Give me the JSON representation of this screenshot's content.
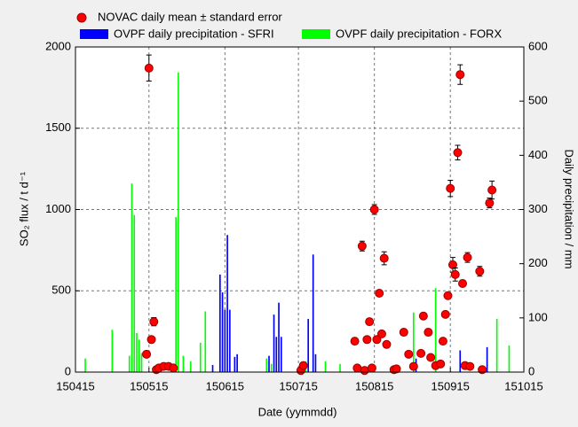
{
  "chart_data": {
    "type": "scatter",
    "xlabel": "Date (yymmdd)",
    "ylabel": "SO₂ flux / t d⁻¹",
    "y2label": "Daily precipitation / mm",
    "xlim": [
      "150415",
      "151015"
    ],
    "xticks": [
      "150415",
      "150515",
      "150615",
      "150715",
      "150815",
      "150915",
      "151015"
    ],
    "ylim": [
      0,
      2000
    ],
    "yticks": [
      0,
      500,
      1000,
      1500,
      2000
    ],
    "y2lim": [
      0,
      600
    ],
    "y2ticks": [
      0,
      100,
      200,
      300,
      400,
      500,
      600
    ],
    "grid": true,
    "legend": "top",
    "series": [
      {
        "name": "NOVAC daily mean ± standard error",
        "type": "scatter",
        "color": "#ff0000",
        "x": [
          "150514",
          "150515",
          "150516",
          "150517",
          "150518",
          "150519",
          "150521",
          "150523",
          "150525",
          "150716",
          "150717",
          "150807",
          "150808",
          "150810",
          "150811",
          "150812",
          "150813",
          "150814",
          "150815",
          "150816",
          "150817",
          "150818",
          "150819",
          "150820",
          "150823",
          "150824",
          "150827",
          "150829",
          "150831",
          "150903",
          "150904",
          "150906",
          "150907",
          "150909",
          "150911",
          "150912",
          "150913",
          "150914",
          "150915",
          "150916",
          "150917",
          "150918",
          "150919",
          "150920",
          "150921",
          "150922",
          "150923",
          "150927",
          "150928",
          "151001",
          "151002"
        ],
        "values": [
          110,
          1870,
          200,
          310,
          15,
          25,
          35,
          35,
          25,
          10,
          40,
          190,
          25,
          775,
          10,
          200,
          310,
          25,
          1000,
          200,
          485,
          235,
          700,
          170,
          15,
          20,
          245,
          110,
          35,
          115,
          345,
          245,
          90,
          40,
          50,
          190,
          355,
          470,
          1130,
          660,
          600,
          1350,
          1830,
          545,
          40,
          705,
          35,
          620,
          15,
          1040,
          1120
        ],
        "errors": [
          8,
          80,
          10,
          25,
          5,
          5,
          5,
          5,
          5,
          5,
          5,
          10,
          5,
          30,
          5,
          10,
          20,
          5,
          30,
          10,
          15,
          10,
          40,
          10,
          5,
          5,
          10,
          8,
          5,
          10,
          15,
          10,
          8,
          5,
          5,
          10,
          15,
          15,
          50,
          45,
          40,
          45,
          60,
          20,
          5,
          30,
          5,
          30,
          5,
          30,
          55
        ]
      },
      {
        "name": "OVPF daily precipitation - SFRI",
        "type": "bar",
        "axis": "y2",
        "color": "#0000ff",
        "x": [
          "150610",
          "150613",
          "150614",
          "150615",
          "150616",
          "150617",
          "150619",
          "150620",
          "150703",
          "150705",
          "150706",
          "150707",
          "150708",
          "150719",
          "150721",
          "150722",
          "150901",
          "150919",
          "150930"
        ],
        "values": [
          13,
          180,
          147,
          115,
          253,
          115,
          28,
          33,
          30,
          106,
          65,
          128,
          65,
          98,
          217,
          33,
          25,
          40,
          46
        ]
      },
      {
        "name": "OVPF daily precipitation - FORX",
        "type": "bar",
        "axis": "y2",
        "color": "#00ff00",
        "x": [
          "150419",
          "150430",
          "150507",
          "150508",
          "150509",
          "150510",
          "150511",
          "150512",
          "150526",
          "150527",
          "150529",
          "150601",
          "150605",
          "150607",
          "150702",
          "150704",
          "150718",
          "150726",
          "150801",
          "150831",
          "150909",
          "151004",
          "151009"
        ],
        "values": [
          25,
          78,
          30,
          348,
          290,
          72,
          60,
          35,
          286,
          553,
          30,
          20,
          54,
          112,
          25,
          15,
          20,
          20,
          15,
          110,
          155,
          98,
          49
        ]
      }
    ]
  }
}
